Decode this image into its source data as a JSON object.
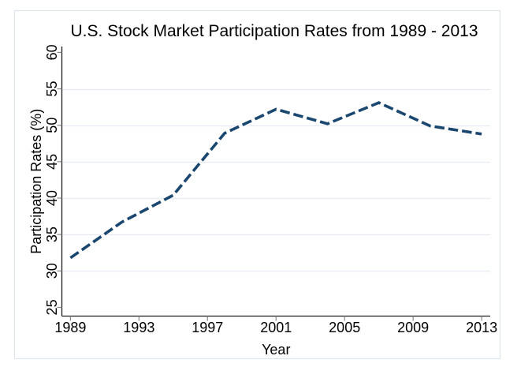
{
  "page": {
    "background": "#ffffff"
  },
  "chart_data": {
    "type": "line",
    "title": "U.S. Stock Market Participation Rates from 1989 - 2013",
    "xlabel": "Year",
    "ylabel": "Participation Rates (%)",
    "x": [
      1989,
      1992,
      1995,
      1998,
      2001,
      2004,
      2007,
      2010,
      2013
    ],
    "values": [
      31.8,
      36.7,
      40.4,
      48.9,
      52.2,
      50.2,
      53.1,
      49.9,
      48.8
    ],
    "x_ticks": [
      1989,
      1993,
      1997,
      2001,
      2005,
      2009,
      2013
    ],
    "y_ticks": [
      25,
      30,
      35,
      40,
      45,
      50,
      55,
      60
    ],
    "y_gridlines": [
      30,
      35,
      40,
      45,
      50,
      55
    ],
    "xlim": [
      1988.5,
      2013.5
    ],
    "ylim": [
      23.8,
      60.8
    ],
    "grid": "horizontal",
    "legend": "none",
    "line": {
      "color": "#1a476f",
      "style": "dashed",
      "width": 3.6,
      "dash": "12.5 5"
    },
    "colors": {
      "title": "#1e3d6e",
      "axis": "#1c1c1c",
      "tick_mark": "#8a8a8a",
      "grid": "#e4ebf1",
      "border": "#d9e4ee",
      "label": "#000000"
    }
  }
}
